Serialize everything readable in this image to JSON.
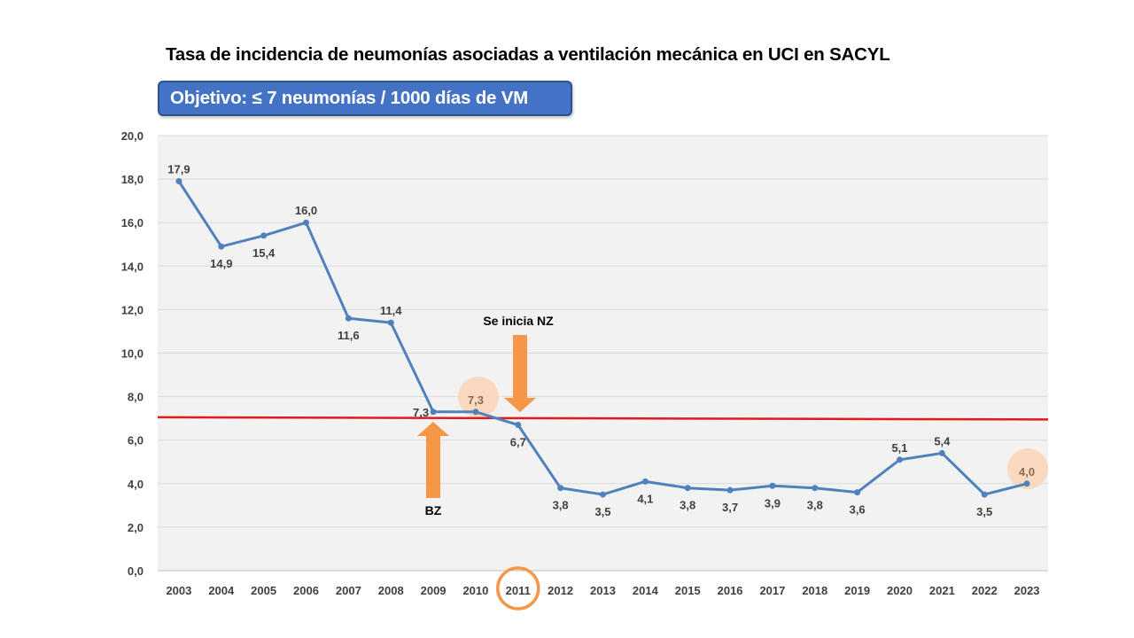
{
  "chart_data": {
    "type": "line",
    "title": "Tasa de incidencia de neumonías asociadas a ventilación mecánica en UCI en SACYL",
    "objective_label": "Objetivo: ≤ 7 neumonías / 1000 días de VM",
    "categories": [
      "2003",
      "2004",
      "2005",
      "2006",
      "2007",
      "2008",
      "2009",
      "2010",
      "2011",
      "2012",
      "2013",
      "2014",
      "2015",
      "2016",
      "2017",
      "2018",
      "2019",
      "2020",
      "2021",
      "2022",
      "2023"
    ],
    "series": [
      {
        "values": [
          17.9,
          14.9,
          15.4,
          16.0,
          11.6,
          11.4,
          7.3,
          7.3,
          6.7,
          3.8,
          3.5,
          4.1,
          3.8,
          3.7,
          3.9,
          3.8,
          3.6,
          5.1,
          5.4,
          3.5,
          4.0
        ],
        "color": "#4f81bd"
      }
    ],
    "data_labels": [
      "17,9",
      "14,9",
      "15,4",
      "16,0",
      "11,6",
      "11,4",
      "7,3",
      "7,3",
      "6,7",
      "3,8",
      "3,5",
      "4,1",
      "3,8",
      "3,7",
      "3,9",
      "3,8",
      "3,6",
      "5,1",
      "5,4",
      "3,5",
      "4,0"
    ],
    "ylim": [
      0,
      20
    ],
    "y_ticks": [
      "0,0",
      "2,0",
      "4,0",
      "6,0",
      "8,0",
      "10,0",
      "12,0",
      "14,0",
      "16,0",
      "18,0",
      "20,0"
    ],
    "target_line": {
      "start": 7.05,
      "end": 6.95,
      "color": "#e31a1c"
    },
    "annotations": {
      "bz_label": "BZ",
      "bz_year": "2009",
      "nz_label": "Se inicia NZ",
      "nz_year": "2011",
      "highlighted_points": [
        "2010",
        "2023"
      ],
      "highlighted_tick": "2011"
    },
    "grid": true,
    "plot_background": "#f2f2f2",
    "accent_color": "#f79646"
  }
}
